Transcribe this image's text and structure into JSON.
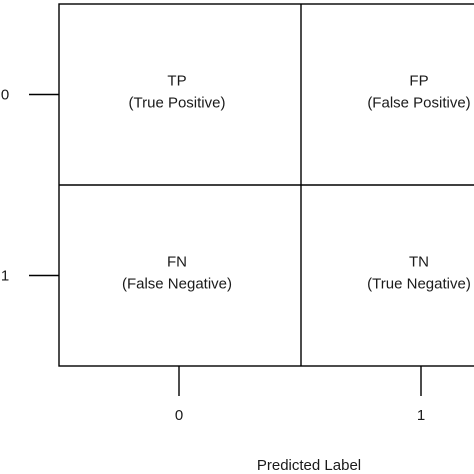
{
  "chart_data": {
    "type": "table",
    "title": "",
    "xlabel": "Predicted Label",
    "ylabel": "",
    "x_categories": [
      "0",
      "1"
    ],
    "y_categories": [
      "0",
      "1"
    ],
    "cells": [
      [
        {
          "abbr": "TP",
          "label": "(True Positive)"
        },
        {
          "abbr": "FP",
          "label": "(False Positive)"
        }
      ],
      [
        {
          "abbr": "FN",
          "label": "(False Negative)"
        },
        {
          "abbr": "TN",
          "label": "(True Negative)"
        }
      ]
    ],
    "grid": true,
    "legend": "none"
  }
}
